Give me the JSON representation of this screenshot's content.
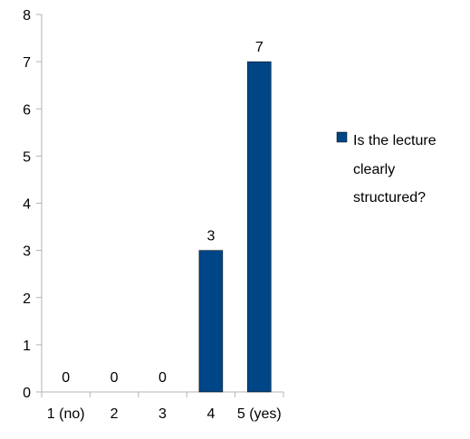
{
  "chart_data": {
    "type": "bar",
    "categories": [
      "1 (no)",
      "2",
      "3",
      "4",
      "5 (yes)"
    ],
    "series": [
      {
        "name": "Is the lecture clearly structured?",
        "values": [
          0,
          0,
          0,
          3,
          7
        ],
        "color": "#004586"
      }
    ],
    "ylim": [
      0,
      8
    ],
    "yticks": [
      "0",
      "1",
      "2",
      "3",
      "4",
      "5",
      "6",
      "7",
      "8"
    ],
    "data_labels": [
      "0",
      "0",
      "0",
      "3",
      "7"
    ],
    "legend": {
      "placement": "right",
      "lines": [
        "Is the lecture",
        "clearly",
        "structured?"
      ]
    },
    "grid": false
  }
}
